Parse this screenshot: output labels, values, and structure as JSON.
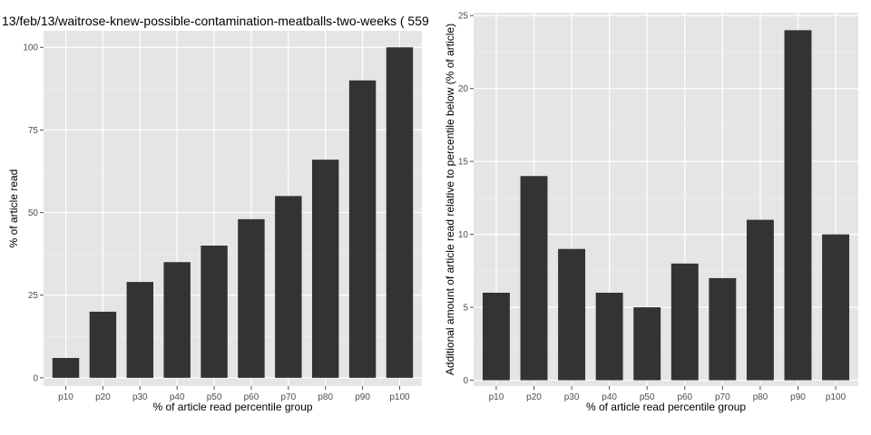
{
  "chart_data": [
    {
      "type": "bar",
      "title": "13/feb/13/waitrose-knew-possible-contamination-meatballs-two-weeks ( 559",
      "xlabel": "% of article read percentile group",
      "ylabel": "% of article read",
      "categories": [
        "p10",
        "p20",
        "p30",
        "p40",
        "p50",
        "p60",
        "p70",
        "p80",
        "p90",
        "p100"
      ],
      "values": [
        6,
        20,
        29,
        35,
        40,
        48,
        55,
        66,
        90,
        100
      ],
      "ylim": [
        -2.5,
        105
      ],
      "yticks": [
        0,
        25,
        50,
        75,
        100
      ],
      "grid": true,
      "bar_color": "#333333",
      "panel_color": "#e5e5e5"
    },
    {
      "type": "bar",
      "title": "",
      "xlabel": "% of article read percentile group",
      "ylabel": "Additional amount of article read relative to percentile below (% of article)",
      "categories": [
        "p10",
        "p20",
        "p30",
        "p40",
        "p50",
        "p60",
        "p70",
        "p80",
        "p90",
        "p100"
      ],
      "values": [
        6,
        14,
        9,
        6,
        5,
        8,
        7,
        11,
        24,
        10
      ],
      "ylim": [
        -0.4,
        25.2
      ],
      "yticks": [
        0,
        5,
        10,
        15,
        20,
        25
      ],
      "grid": true,
      "bar_color": "#333333",
      "panel_color": "#e5e5e5"
    }
  ]
}
